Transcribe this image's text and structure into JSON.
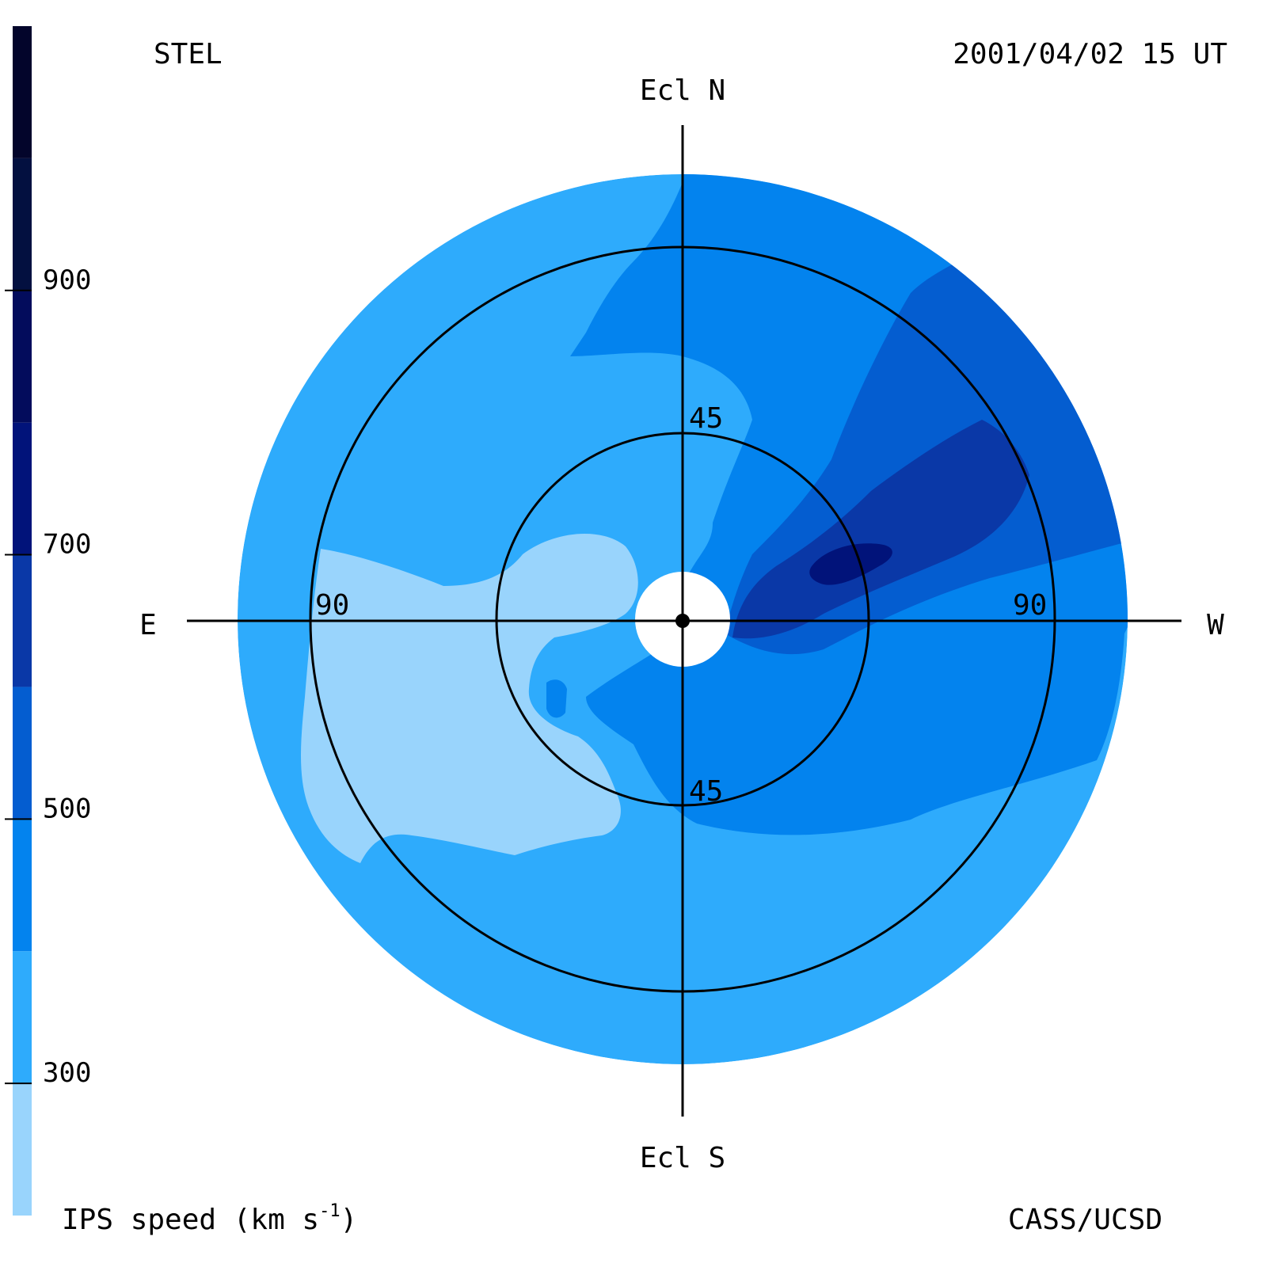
{
  "header": {
    "observatory": "STEL",
    "timestamp": "2001/04/02 15 UT"
  },
  "footer": {
    "credit": "CASS/UCSD"
  },
  "directions": {
    "north": "Ecl N",
    "south": "Ecl S",
    "east": "E",
    "west": "W"
  },
  "elongation_rings": {
    "inner": "45",
    "outer": "90"
  },
  "colorbar": {
    "title": "IPS speed (km s",
    "title_superscript": "-1",
    "title_close": ")",
    "levels": [
      200,
      300,
      400,
      500,
      600,
      700,
      800,
      900,
      1000
    ],
    "ticks": [
      "900",
      "700",
      "500",
      "300"
    ],
    "colors": [
      "#99d4fc",
      "#2eabfc",
      "#0383ee",
      "#045dd0",
      "#0a38a7",
      "#01137a",
      "#030c5c",
      "#031040",
      "#03052b"
    ]
  },
  "chart_data": {
    "type": "heatmap",
    "projection": "fisheye sky map centred on the Sun, ecliptic coordinates",
    "value": "IPS speed",
    "unit": "km s-1",
    "elongation_rings_deg": [
      45,
      90
    ],
    "regions": [
      {
        "area": "outer rim (all sides)",
        "speed_km_s": 300
      },
      {
        "area": "east and south-east, 90 deg ring",
        "speed_km_s": 200
      },
      {
        "area": "near Sun, east side",
        "speed_km_s": 200
      },
      {
        "area": "north and north-west",
        "speed_km_s": 400
      },
      {
        "area": "south-west",
        "speed_km_s": 400
      },
      {
        "area": "west band",
        "speed_km_s": 500
      },
      {
        "area": "west, 45-90 deg",
        "speed_km_s": 600
      },
      {
        "area": "west, near 45 deg ring",
        "speed_km_s": 700
      }
    ]
  }
}
